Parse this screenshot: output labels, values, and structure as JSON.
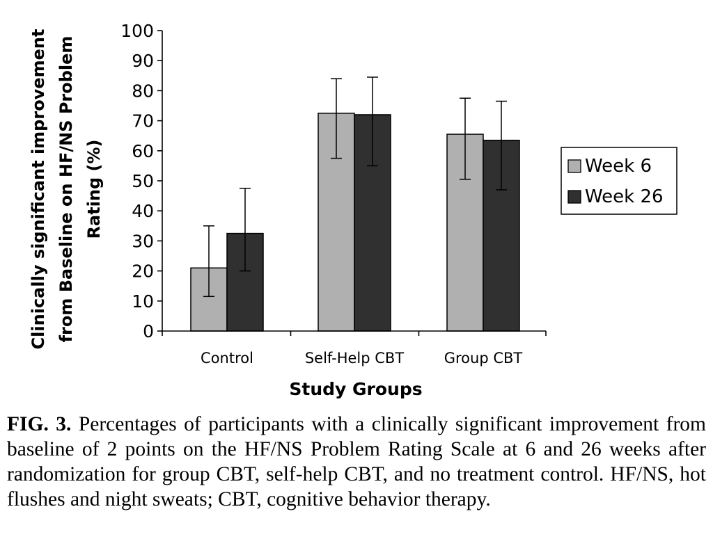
{
  "chart_data": {
    "type": "bar",
    "categories": [
      "Control",
      "Self-Help CBT",
      "Group CBT"
    ],
    "series": [
      {
        "name": "Week 6",
        "values": [
          21,
          72.5,
          65.5
        ],
        "error_low": [
          11.5,
          57.5,
          50.5
        ],
        "error_high": [
          35,
          84,
          77.5
        ],
        "color": "#b0b0b0"
      },
      {
        "name": "Week 26",
        "values": [
          32.5,
          72,
          63.5
        ],
        "error_low": [
          20,
          55,
          47
        ],
        "error_high": [
          47.5,
          84.5,
          76.5
        ],
        "color": "#303030"
      }
    ],
    "ylim": [
      0,
      100
    ],
    "yticks": [
      0,
      10,
      20,
      30,
      40,
      50,
      60,
      70,
      80,
      90,
      100
    ],
    "ylabel_lines": [
      "Clinically significant improvement",
      "from Baseline on HF/NS Problem",
      "Rating (%)"
    ],
    "xlabel": "Study Groups",
    "legend_position": "right",
    "grid": false
  },
  "caption": {
    "label": "FIG. 3.",
    "text": "Percentages of participants with a clinically significant improvement from baseline of 2 points on the HF/NS Problem Rating Scale at 6 and 26 weeks after randomization for group CBT, self-help CBT, and no treatment control. HF/NS, hot flushes and night sweats; CBT, cognitive behavior therapy."
  }
}
